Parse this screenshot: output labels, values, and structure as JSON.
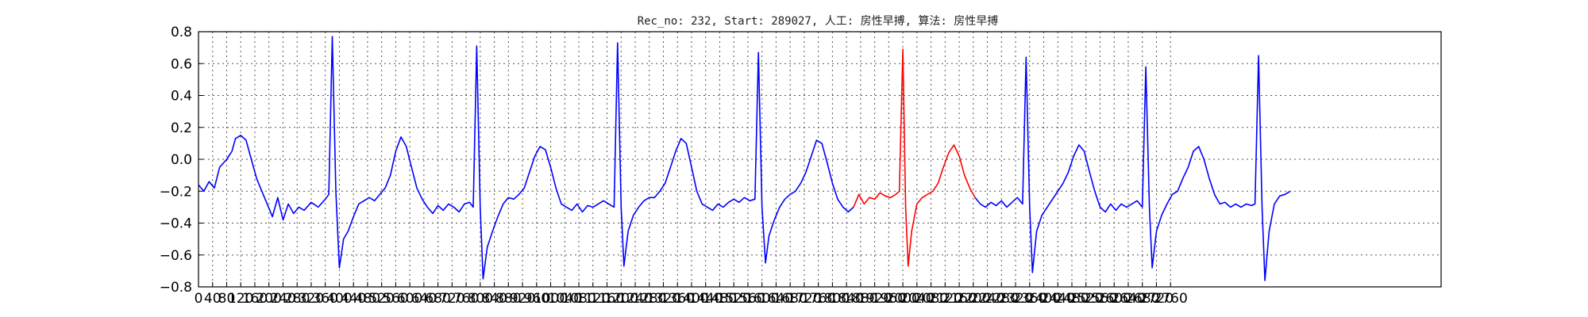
{
  "chart_data": {
    "type": "line",
    "title": "Rec_no: 232, Start: 289027, 人工: 房性早搏, 算法: 房性早搏",
    "xlim": [
      0,
      3100
    ],
    "ylim": [
      -0.8,
      0.8
    ],
    "grid": true,
    "y_ticks": [
      -0.8,
      -0.6,
      -0.4,
      -0.2,
      0.0,
      0.2,
      0.4,
      0.6,
      0.8
    ],
    "y_tick_labels": [
      "−0.8",
      "−0.6",
      "−0.4",
      "−0.2",
      "0.0",
      "0.2",
      "0.4",
      "0.6",
      "0.8"
    ],
    "x_ticks": [
      0,
      40,
      80,
      120,
      160,
      200,
      240,
      280,
      320,
      360,
      400,
      440,
      480,
      520,
      560,
      600,
      640,
      680,
      720,
      760,
      800,
      840,
      880,
      920,
      960,
      1000,
      1040,
      1080,
      1120,
      1160,
      1200,
      1240,
      1280,
      1320,
      1360,
      1400,
      1440,
      1480,
      1520,
      1560,
      1600,
      1640,
      1680,
      1720,
      1760,
      1800,
      1840,
      1880,
      1920,
      1960,
      2000,
      2040,
      2080,
      2120,
      2160,
      2200,
      2240,
      2280,
      2320,
      2360,
      2400,
      2440,
      2480,
      2520,
      2560,
      2600,
      2640,
      2680,
      2720,
      2760
    ],
    "x_tick_labels": [
      "0",
      "40",
      "80",
      "120",
      "160",
      "200",
      "240",
      "280",
      "320",
      "360",
      "400",
      "440",
      "480",
      "520",
      "560",
      "600",
      "640",
      "680",
      "720",
      "760",
      "800",
      "840",
      "880",
      "920",
      "960",
      "1000",
      "1040",
      "1080",
      "1120",
      "1160",
      "1200",
      "1240",
      "1280",
      "1320",
      "1360",
      "1400",
      "1440",
      "1480",
      "1520",
      "1560",
      "1600",
      "1640",
      "1680",
      "1720",
      "1760",
      "1800",
      "1840",
      "1880",
      "1920",
      "1960",
      "2000",
      "2040",
      "2080",
      "2120",
      "2160",
      "2200",
      "2240",
      "2280",
      "2320",
      "2360",
      "2400",
      "2440",
      "2480",
      "2520",
      "2560",
      "2600",
      "2640",
      "2680",
      "2720",
      "2760"
    ],
    "series": [
      {
        "color": "#0000ff",
        "points": [
          [
            0,
            -0.16
          ],
          [
            15,
            -0.2
          ],
          [
            30,
            -0.14
          ],
          [
            45,
            -0.18
          ],
          [
            60,
            -0.05
          ],
          [
            80,
            0.0
          ],
          [
            95,
            0.05
          ],
          [
            105,
            0.13
          ],
          [
            120,
            0.15
          ],
          [
            135,
            0.12
          ],
          [
            150,
            0.0
          ],
          [
            165,
            -0.12
          ],
          [
            180,
            -0.2
          ],
          [
            195,
            -0.28
          ],
          [
            210,
            -0.36
          ],
          [
            225,
            -0.24
          ],
          [
            240,
            -0.38
          ],
          [
            255,
            -0.28
          ],
          [
            270,
            -0.34
          ],
          [
            285,
            -0.3
          ],
          [
            300,
            -0.32
          ],
          [
            320,
            -0.27
          ],
          [
            340,
            -0.3
          ],
          [
            360,
            -0.25
          ],
          [
            370,
            -0.22
          ],
          [
            380,
            0.77
          ],
          [
            390,
            -0.2
          ],
          [
            400,
            -0.68
          ],
          [
            412,
            -0.5
          ],
          [
            425,
            -0.45
          ],
          [
            440,
            -0.36
          ],
          [
            455,
            -0.28
          ],
          [
            470,
            -0.26
          ],
          [
            485,
            -0.24
          ],
          [
            500,
            -0.26
          ],
          [
            515,
            -0.22
          ],
          [
            530,
            -0.18
          ],
          [
            545,
            -0.1
          ],
          [
            560,
            0.05
          ],
          [
            575,
            0.14
          ],
          [
            590,
            0.08
          ],
          [
            605,
            -0.05
          ],
          [
            620,
            -0.18
          ],
          [
            635,
            -0.25
          ],
          [
            650,
            -0.3
          ],
          [
            665,
            -0.34
          ],
          [
            680,
            -0.29
          ],
          [
            695,
            -0.32
          ],
          [
            710,
            -0.28
          ],
          [
            725,
            -0.3
          ],
          [
            740,
            -0.33
          ],
          [
            755,
            -0.28
          ],
          [
            770,
            -0.27
          ],
          [
            780,
            -0.3
          ],
          [
            790,
            0.71
          ],
          [
            800,
            -0.3
          ],
          [
            808,
            -0.75
          ],
          [
            820,
            -0.55
          ],
          [
            835,
            -0.45
          ],
          [
            850,
            -0.36
          ],
          [
            865,
            -0.28
          ],
          [
            880,
            -0.24
          ],
          [
            895,
            -0.25
          ],
          [
            910,
            -0.22
          ],
          [
            925,
            -0.18
          ],
          [
            940,
            -0.08
          ],
          [
            955,
            0.02
          ],
          [
            970,
            0.08
          ],
          [
            985,
            0.06
          ],
          [
            1000,
            -0.05
          ],
          [
            1015,
            -0.18
          ],
          [
            1030,
            -0.28
          ],
          [
            1045,
            -0.3
          ],
          [
            1060,
            -0.32
          ],
          [
            1075,
            -0.28
          ],
          [
            1090,
            -0.33
          ],
          [
            1105,
            -0.29
          ],
          [
            1120,
            -0.3
          ],
          [
            1135,
            -0.28
          ],
          [
            1150,
            -0.26
          ],
          [
            1165,
            -0.28
          ],
          [
            1180,
            -0.3
          ],
          [
            1190,
            0.73
          ],
          [
            1200,
            -0.3
          ],
          [
            1208,
            -0.67
          ],
          [
            1220,
            -0.45
          ],
          [
            1235,
            -0.35
          ],
          [
            1250,
            -0.3
          ],
          [
            1265,
            -0.26
          ],
          [
            1280,
            -0.24
          ],
          [
            1295,
            -0.24
          ],
          [
            1310,
            -0.2
          ],
          [
            1325,
            -0.15
          ],
          [
            1340,
            -0.05
          ],
          [
            1355,
            0.05
          ],
          [
            1370,
            0.13
          ],
          [
            1385,
            0.1
          ],
          [
            1400,
            -0.05
          ],
          [
            1415,
            -0.2
          ],
          [
            1430,
            -0.28
          ],
          [
            1445,
            -0.3
          ],
          [
            1460,
            -0.32
          ],
          [
            1475,
            -0.28
          ],
          [
            1490,
            -0.3
          ],
          [
            1505,
            -0.27
          ],
          [
            1520,
            -0.25
          ],
          [
            1535,
            -0.27
          ],
          [
            1550,
            -0.24
          ],
          [
            1565,
            -0.26
          ],
          [
            1580,
            -0.25
          ],
          [
            1590,
            0.67
          ],
          [
            1600,
            -0.3
          ],
          [
            1610,
            -0.65
          ],
          [
            1620,
            -0.48
          ],
          [
            1635,
            -0.38
          ],
          [
            1650,
            -0.3
          ],
          [
            1665,
            -0.25
          ],
          [
            1680,
            -0.22
          ],
          [
            1695,
            -0.2
          ],
          [
            1710,
            -0.15
          ],
          [
            1725,
            -0.08
          ],
          [
            1740,
            0.02
          ],
          [
            1755,
            0.12
          ],
          [
            1770,
            0.1
          ],
          [
            1785,
            -0.02
          ],
          [
            1800,
            -0.15
          ],
          [
            1815,
            -0.25
          ],
          [
            1830,
            -0.3
          ],
          [
            1845,
            -0.33
          ],
          [
            1860,
            -0.3
          ]
        ]
      },
      {
        "color": "#ff0000",
        "points": [
          [
            1860,
            -0.3
          ],
          [
            1875,
            -0.22
          ],
          [
            1890,
            -0.28
          ],
          [
            1905,
            -0.24
          ],
          [
            1920,
            -0.25
          ],
          [
            1935,
            -0.21
          ],
          [
            1950,
            -0.23
          ],
          [
            1965,
            -0.24
          ],
          [
            1980,
            -0.22
          ],
          [
            1990,
            -0.2
          ],
          [
            2000,
            0.69
          ],
          [
            2008,
            -0.3
          ],
          [
            2015,
            -0.67
          ],
          [
            2025,
            -0.45
          ],
          [
            2040,
            -0.28
          ],
          [
            2055,
            -0.24
          ],
          [
            2070,
            -0.22
          ],
          [
            2085,
            -0.2
          ],
          [
            2100,
            -0.15
          ],
          [
            2115,
            -0.05
          ],
          [
            2130,
            0.04
          ],
          [
            2145,
            0.09
          ],
          [
            2160,
            0.02
          ],
          [
            2175,
            -0.1
          ],
          [
            2190,
            -0.18
          ],
          [
            2205,
            -0.24
          ]
        ]
      },
      {
        "color": "#0000ff",
        "points": [
          [
            2205,
            -0.24
          ],
          [
            2220,
            -0.28
          ],
          [
            2235,
            -0.3
          ],
          [
            2250,
            -0.27
          ],
          [
            2265,
            -0.29
          ],
          [
            2280,
            -0.26
          ],
          [
            2295,
            -0.3
          ],
          [
            2310,
            -0.27
          ],
          [
            2325,
            -0.24
          ],
          [
            2340,
            -0.28
          ],
          [
            2350,
            0.64
          ],
          [
            2360,
            -0.3
          ],
          [
            2368,
            -0.71
          ],
          [
            2380,
            -0.45
          ],
          [
            2395,
            -0.35
          ],
          [
            2410,
            -0.3
          ],
          [
            2425,
            -0.25
          ],
          [
            2440,
            -0.2
          ],
          [
            2455,
            -0.15
          ],
          [
            2470,
            -0.08
          ],
          [
            2485,
            0.02
          ],
          [
            2500,
            0.09
          ],
          [
            2515,
            0.05
          ],
          [
            2530,
            -0.08
          ],
          [
            2545,
            -0.2
          ],
          [
            2560,
            -0.3
          ],
          [
            2575,
            -0.33
          ],
          [
            2590,
            -0.28
          ],
          [
            2605,
            -0.32
          ],
          [
            2620,
            -0.28
          ],
          [
            2635,
            -0.3
          ],
          [
            2650,
            -0.28
          ],
          [
            2665,
            -0.26
          ],
          [
            2680,
            -0.3
          ],
          [
            2690,
            0.58
          ],
          [
            2700,
            -0.3
          ],
          [
            2708,
            -0.68
          ],
          [
            2720,
            -0.45
          ],
          [
            2735,
            -0.35
          ],
          [
            2750,
            -0.28
          ],
          [
            2765,
            -0.22
          ],
          [
            2780,
            -0.2
          ],
          [
            2795,
            -0.12
          ],
          [
            2810,
            -0.05
          ],
          [
            2825,
            0.05
          ],
          [
            2840,
            0.08
          ],
          [
            2855,
            0.0
          ],
          [
            2870,
            -0.12
          ],
          [
            2885,
            -0.22
          ],
          [
            2900,
            -0.28
          ],
          [
            2915,
            -0.27
          ],
          [
            2930,
            -0.3
          ],
          [
            2945,
            -0.28
          ],
          [
            2960,
            -0.3
          ],
          [
            2975,
            -0.28
          ],
          [
            2990,
            -0.29
          ],
          [
            3000,
            -0.28
          ],
          [
            3010,
            0.65
          ],
          [
            3020,
            -0.3
          ],
          [
            3028,
            -0.76
          ],
          [
            3040,
            -0.45
          ],
          [
            3055,
            -0.28
          ],
          [
            3070,
            -0.23
          ],
          [
            3085,
            -0.22
          ],
          [
            3100,
            -0.2
          ]
        ]
      }
    ]
  }
}
